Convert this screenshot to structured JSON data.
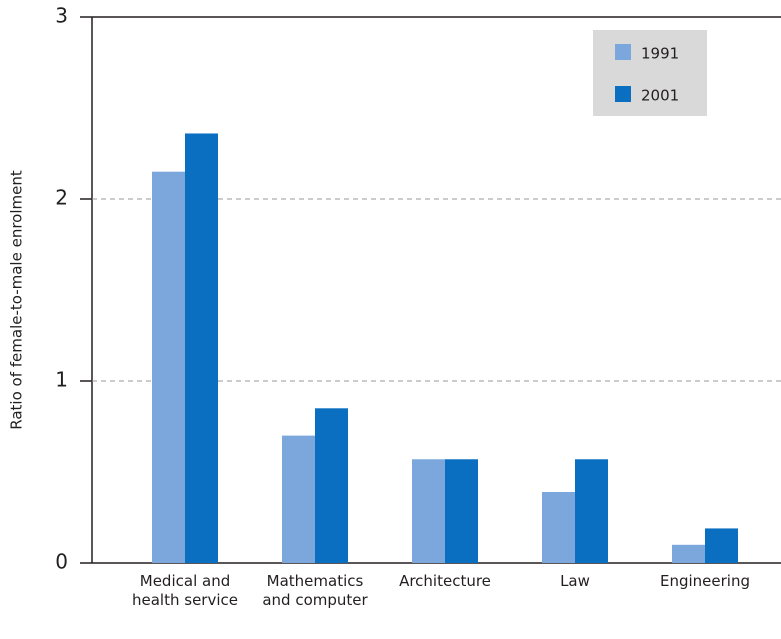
{
  "chart_data": {
    "type": "bar",
    "y_label": "Ratio of female-to-male enrolment",
    "categories": [
      "Medical and health service",
      "Mathematics and computer",
      "Architecture",
      "Law",
      "Engineering"
    ],
    "series": [
      {
        "name": "1991",
        "color": "#7ba7dc",
        "values": [
          2.15,
          0.7,
          0.57,
          0.39,
          0.1
        ]
      },
      {
        "name": "2001",
        "color": "#0b6fc1",
        "values": [
          2.36,
          0.85,
          0.57,
          0.57,
          0.19
        ]
      }
    ],
    "ylim": [
      0,
      3
    ],
    "yticks": [
      0,
      1,
      2,
      3
    ],
    "grid": true,
    "legend": "top-right"
  }
}
